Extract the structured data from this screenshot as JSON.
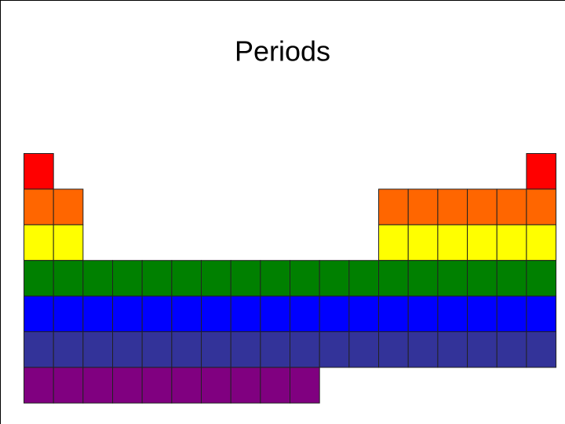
{
  "title": "Periods"
}
